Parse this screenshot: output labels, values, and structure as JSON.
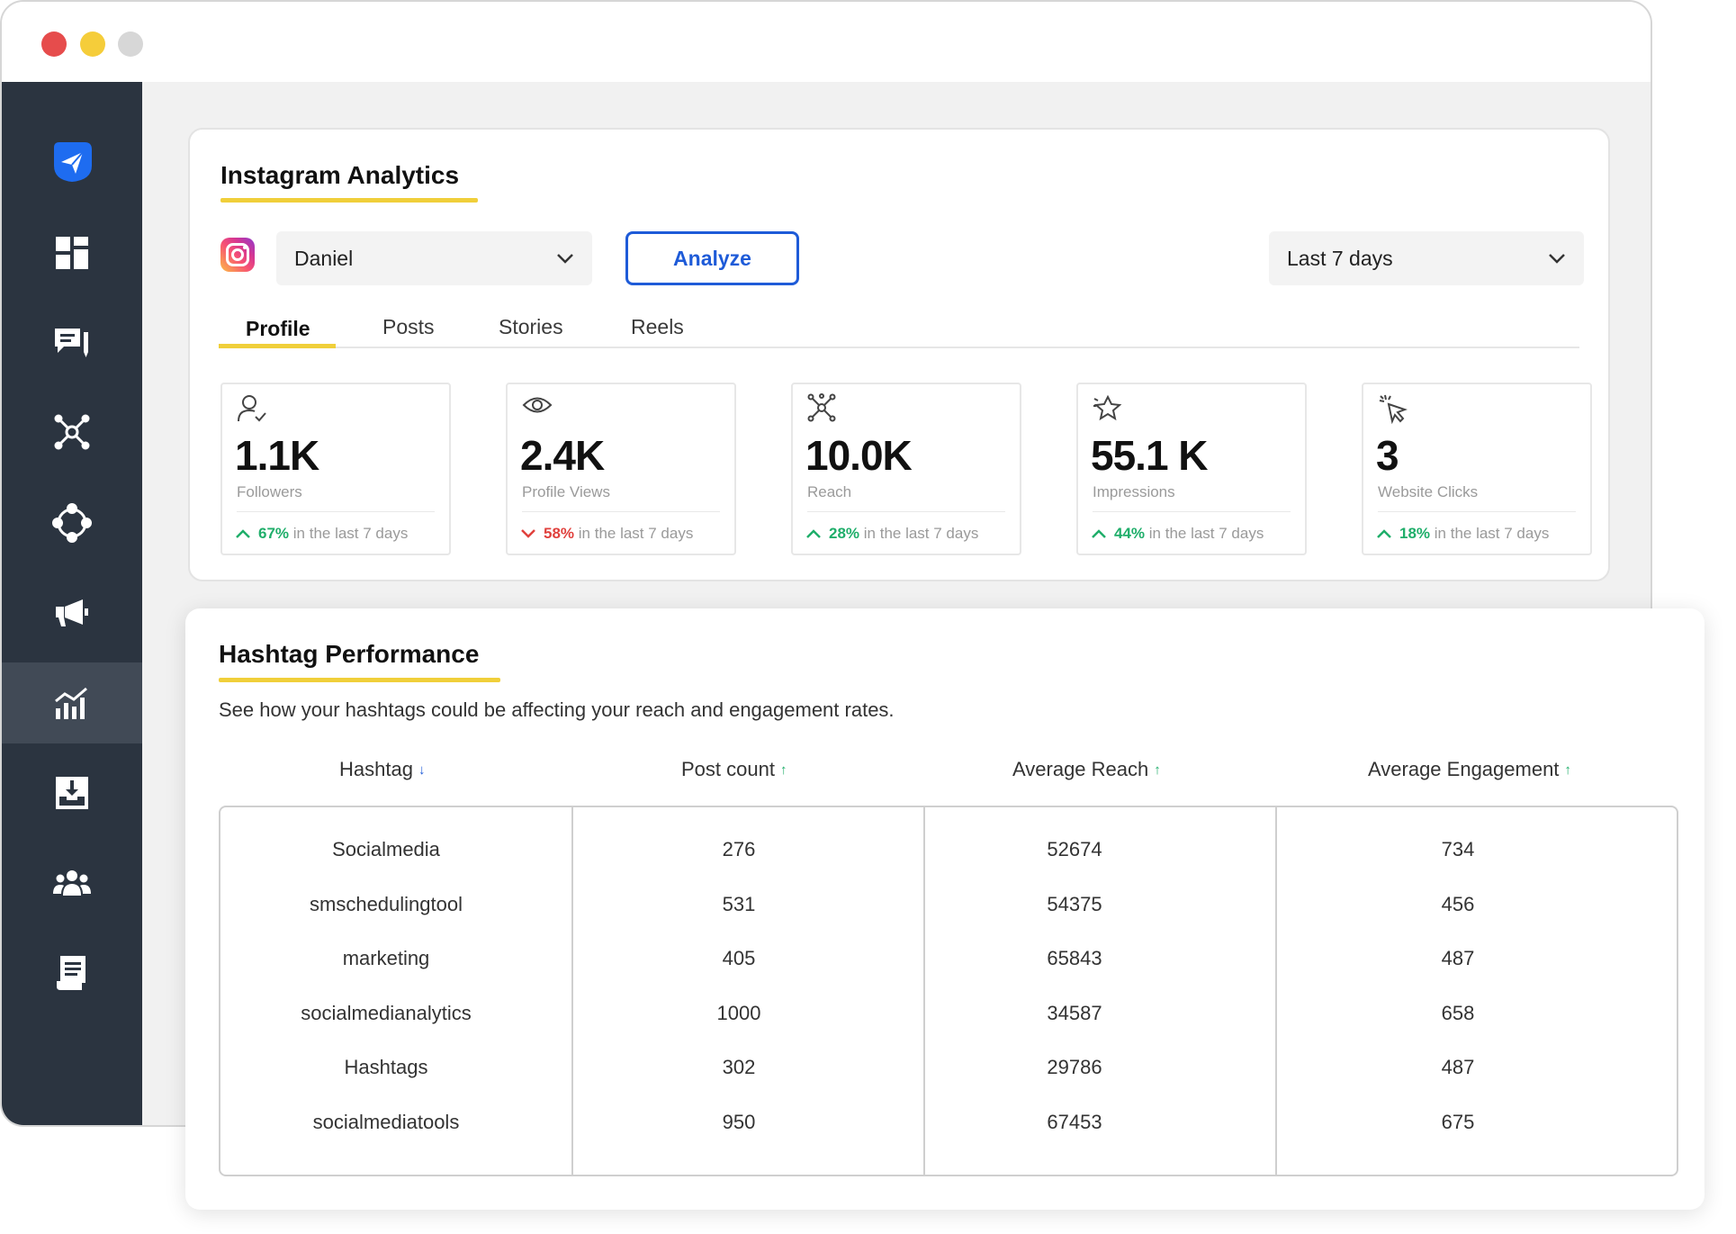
{
  "analytics": {
    "title": "Instagram Analytics",
    "account": "Daniel",
    "analyze_label": "Analyze",
    "date_range": "Last 7 days",
    "tabs": [
      "Profile",
      "Posts",
      "Stories",
      "Reels"
    ],
    "stats": [
      {
        "value": "1.1K",
        "label": "Followers",
        "pct": "67%",
        "suffix": "in the last 7 days",
        "trend": "up",
        "icon": "user-check-icon"
      },
      {
        "value": "2.4K",
        "label": "Profile Views",
        "pct": "58%",
        "suffix": "in the last 7 days",
        "trend": "down",
        "icon": "eye-icon"
      },
      {
        "value": "10.0K",
        "label": "Reach",
        "pct": "28%",
        "suffix": "in the last 7 days",
        "trend": "up",
        "icon": "network-icon"
      },
      {
        "value": "55.1 K",
        "label": "Impressions",
        "pct": "44%",
        "suffix": "in the last 7 days",
        "trend": "up",
        "icon": "star-icon"
      },
      {
        "value": "3",
        "label": "Website Clicks",
        "pct": "18%",
        "suffix": "in the last 7 days",
        "trend": "up",
        "icon": "cursor-click-icon"
      }
    ]
  },
  "hashtags": {
    "title": "Hashtag Performance",
    "subtitle": "See how your hashtags could be affecting your reach and engagement rates.",
    "columns": [
      {
        "label": "Hashtag",
        "sort": "down"
      },
      {
        "label": "Post count",
        "sort": "up"
      },
      {
        "label": "Average Reach",
        "sort": "up"
      },
      {
        "label": "Average Engagement",
        "sort": "up"
      }
    ],
    "rows": [
      [
        "Socialmedia",
        "276",
        "52674",
        "734"
      ],
      [
        "smschedulingtool",
        "531",
        "54375",
        "456"
      ],
      [
        "marketing",
        "405",
        "65843",
        "487"
      ],
      [
        "socialmedianalytics",
        "1000",
        "34587",
        "658"
      ],
      [
        "Hashtags",
        "302",
        "29786",
        "487"
      ],
      [
        "socialmediatools",
        "950",
        "67453",
        "675"
      ]
    ]
  },
  "sidebar": {
    "items": [
      "send-logo-icon",
      "dashboard-icon",
      "compose-icon",
      "network-icon",
      "integrations-icon",
      "megaphone-icon",
      "analytics-icon",
      "inbox-download-icon",
      "team-icon",
      "reports-icon"
    ],
    "active_index": 6
  },
  "colors": {
    "sidebar_bg": "#2b3440",
    "accent_yellow": "#f0cf3a",
    "primary_blue": "#1e5bd8",
    "positive_green": "#1fae6a",
    "negative_red": "#e0413d"
  }
}
